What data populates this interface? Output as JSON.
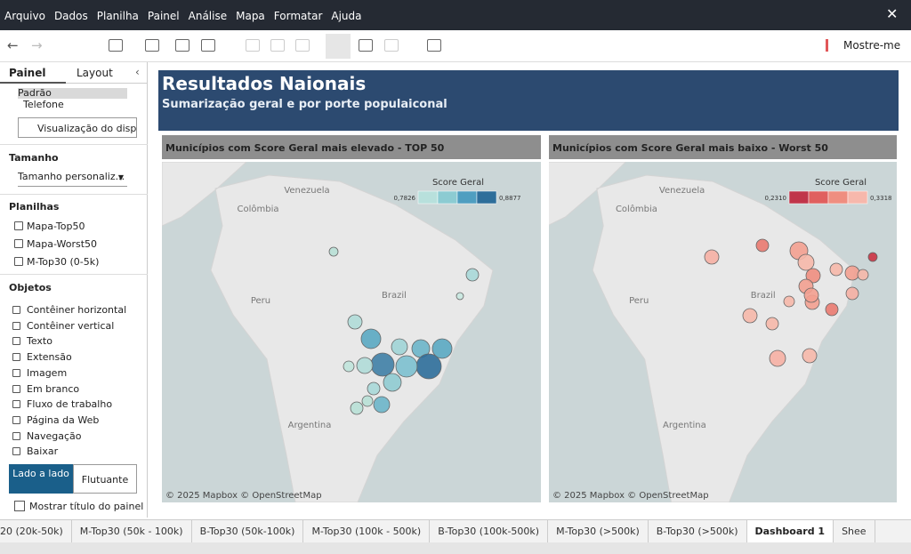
{
  "menu": [
    "Arquivo",
    "Dados",
    "Planilha",
    "Painel",
    "Análise",
    "Mapa",
    "Formatar",
    "Ajuda"
  ],
  "toolbar": {
    "show_me": "Mostre-me"
  },
  "sidebar": {
    "tabs": [
      "Painel",
      "Layout"
    ],
    "devices": [
      "Padrão",
      "Telefone"
    ],
    "preview_button": "Visualização do dispos",
    "size_heading": "Tamanho",
    "size_select": "Tamanho personaliz...",
    "sheets_heading": "Planilhas",
    "sheets": [
      "Mapa-Top50",
      "Mapa-Worst50",
      "M-Top30 (0-5k)"
    ],
    "objects_heading": "Objetos",
    "objects": [
      "Contêiner horizontal",
      "Contêiner vertical",
      "Texto",
      "Extensão",
      "Imagem",
      "Em branco",
      "Fluxo de trabalho",
      "Página da Web",
      "Navegação",
      "Baixar"
    ],
    "layout_buttons": [
      "Lado a lado",
      "Flutuante"
    ],
    "show_title": "Mostrar título do painel"
  },
  "dashboard": {
    "title": "Resultados Naionais",
    "subtitle": "Sumarização geral e por porte populaiconal",
    "maps": [
      {
        "title": "Municípios com Score Geral mais elevado - TOP 50",
        "legend_title": "Score Geral",
        "legend_min": "0,7826",
        "legend_max": "0,8877",
        "places": [
          "Venezuela",
          "Colômbia",
          "Peru",
          "Brazil",
          "Argentina"
        ],
        "attribution": "© 2025 Mapbox  © OpenStreetMap"
      },
      {
        "title": "Municípios com Score Geral mais baixo - Worst 50",
        "legend_title": "Score Geral",
        "legend_min": "0,2310",
        "legend_max": "0,3318",
        "places": [
          "Venezuela",
          "Colômbia",
          "Peru",
          "Brazil",
          "Argentina"
        ],
        "attribution": "© 2025 Mapbox  © OpenStreetMap"
      }
    ]
  },
  "tabs": [
    "20 (20k-50k)",
    "M-Top30 (50k - 100k)",
    "B-Top30 (50k-100k)",
    "M-Top30 (100k - 500k)",
    "B-Top30 (100k-500k)",
    "M-Top30 (>500k)",
    "B-Top30 (>500k)",
    "Dashboard 1",
    "Shee"
  ]
}
